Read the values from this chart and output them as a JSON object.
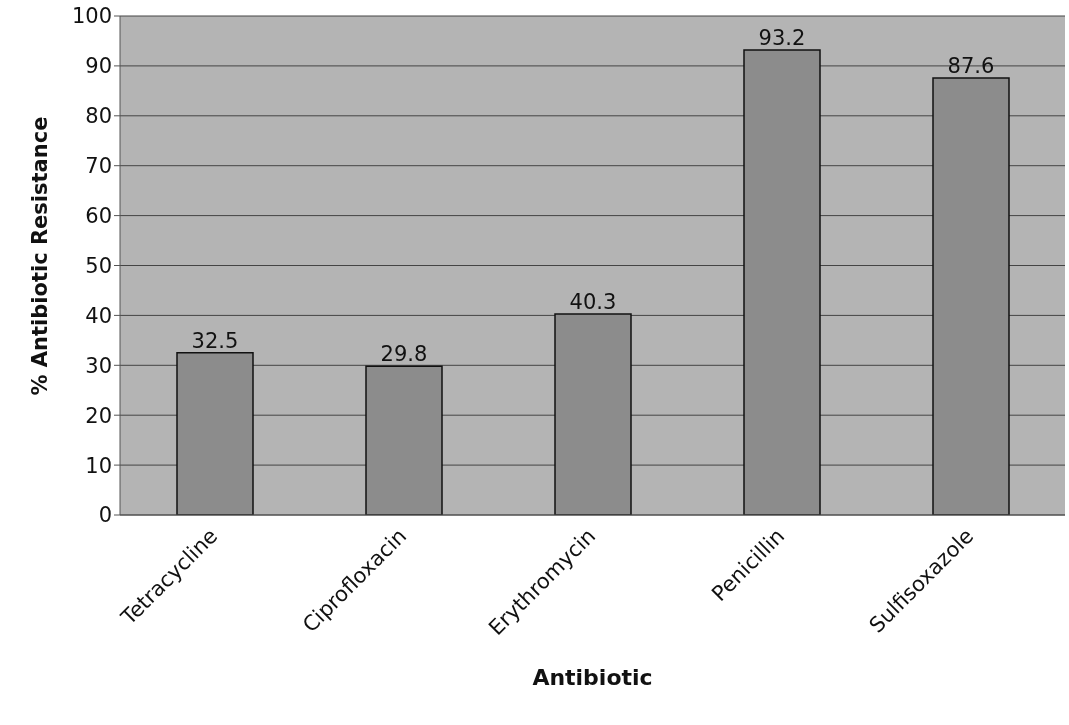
{
  "chart_data": {
    "type": "bar",
    "xlabel": "Antibiotic",
    "ylabel": "% Antibiotic Resistance",
    "categories": [
      "Tetracycline",
      "Ciprofloxacin",
      "Erythromycin",
      "Penicillin",
      "Sulfisoxazole"
    ],
    "values": [
      32.5,
      29.8,
      40.3,
      93.2,
      87.6
    ],
    "color": "#8c8c8c",
    "ylim": [
      0,
      100
    ],
    "yticks": [
      0,
      10,
      20,
      30,
      40,
      50,
      60,
      70,
      80,
      90,
      100
    ],
    "grid": "y",
    "data_labels": true
  }
}
